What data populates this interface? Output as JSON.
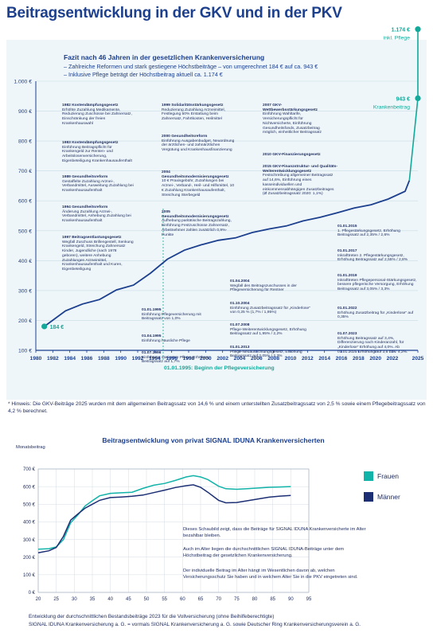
{
  "page": {
    "title": "Beitragsentwicklung in der GKV und in der PKV",
    "footnote": "* Hinweis: Die GKV-Beiträge 2025 wurden mit dem allgemeinen Beitragssatz von 14,6 % und einem unterstellten Zusatzbeitragssatz von 2,5 % sowie einem Pflegebeitragssatz von 4,2 % berechnet.",
    "bottom_line1": "Entwicklung der durchschnittlichen Bestandsbeiträge 2023 für die Vollversicherung (ohne Beihilfeberechtigte)",
    "bottom_line2": "SIGNAL IDUNA Krankenversicherung a. G. = vormals SIGNAL Krankenversicherung a. G. sowie Deutscher Ring Krankenversicherungsverein a. G."
  },
  "fazit": {
    "title": "Fazit nach 46 Jahren in der gesetzlichen Krankenversicherung",
    "line1": "– Zahlreiche Reformen und stark gestiegene Höchstbeiträge – von umgerechnet 184 € auf ca. 943 €",
    "line2": "– Inklusive Pflege beträgt der Höchstbeitrag aktuell ca. 1.174 €"
  },
  "chart_data": [
    {
      "type": "line",
      "title": "",
      "xlabel": "",
      "ylabel": "",
      "ylim": [
        100,
        1000
      ],
      "xlim": [
        1980,
        2025
      ],
      "y_ticks": [
        "100 €",
        "200 €",
        "300 €",
        "400 €",
        "500 €",
        "600 €",
        "700 €",
        "800 €",
        "900 €",
        "1.000 €"
      ],
      "x_ticks": [
        "1980",
        "1982",
        "1984",
        "1986",
        "1988",
        "1990",
        "1992",
        "1994",
        "1996",
        "1998",
        "2000",
        "2002",
        "2004",
        "2006",
        "2008",
        "2010",
        "2012",
        "2014",
        "2016",
        "2018",
        "2020",
        "2022",
        "2025"
      ],
      "series": [
        {
          "name": "",
          "color": "#1c3f8e",
          "points": [
            [
              1981,
              180
            ],
            [
              1983.5,
              232
            ],
            [
              1985.5,
              255
            ],
            [
              1987.5,
              270
            ],
            [
              1989.5,
              302
            ],
            [
              1991.5,
              318
            ],
            [
              1993.5,
              358
            ],
            [
              1995.5,
              405
            ],
            [
              1997.5,
              435
            ],
            [
              1999.5,
              453
            ],
            [
              2001.5,
              468
            ],
            [
              2003.5,
              476
            ],
            [
              2005.5,
              494
            ],
            [
              2007.5,
              506
            ],
            [
              2009.5,
              516
            ],
            [
              2011.5,
              533
            ],
            [
              2013.5,
              545
            ],
            [
              2015.5,
              560
            ],
            [
              2017.5,
              576
            ],
            [
              2019.5,
              587
            ],
            [
              2021.5,
              606
            ],
            [
              2023.5,
              632
            ],
            [
              2024,
              668
            ]
          ]
        },
        {
          "name": "Krankenbeitrag",
          "color": "#12a99a",
          "points": [
            [
              2024,
              668
            ],
            [
              2025,
              943
            ]
          ]
        },
        {
          "name": "inkl. Pflege",
          "color": "#12a99a",
          "points": [
            [
              2025,
              943
            ],
            [
              2025,
              1174
            ]
          ]
        }
      ],
      "start_label": "184 €",
      "end_label_kranken": "943 €",
      "end_label_kranken_caption": "Krankenbeitrag",
      "end_label_pflege": "1.174 €",
      "end_label_pflege_caption": "inkl. Pflege",
      "marker_label": "01.01.1995: Beginn der Pflegeversicherung",
      "marker_x": 1995,
      "colors": {
        "line": "#1c3f8e",
        "accent": "#12a99a",
        "grid": "#c9dde6"
      },
      "annotations": [
        {
          "title": "1982 Kostendämpfungsgesetz",
          "text": "Erhöhte Zuzahlung Medikamente, Reduzierung Zuschüsse bei Zahnersatz, Einschränkung der freien Krankenhauswahl"
        },
        {
          "title": "1983 Kostendämpfungsgesetz",
          "text": "Einführung Beitragspflicht für Krankengeld zur Renten- und Arbeitslosenversicherung, Eigenbeteiligung Krankenhausaufenthalt"
        },
        {
          "title": "1989 Gesundheitsreform",
          "text": "Gestaffelte Zuzahlung Arznei-, Verbandmittel, Ausweitung Zuzahlung bei Krankenhausaufenthalt"
        },
        {
          "title": "1994 Gesundheitsreform",
          "text": "Änderung Zuzahlung Arznei-, Verbandmittel, Anhebung Zuzahlung bei Krankenhausaufenthalt"
        },
        {
          "title": "1997 Beitragsentlastungsgesetz",
          "text": "Wegfall Zuschuss Brillengestell, Senkung Krankengeld, Streichung Zahnersatz Kinder, Jugendliche (nach 1978 geboren), weitere Anhebung Zuzahlungen Arzneimittel, Krankenhausaufenthalt und Kuren, Eigenbeteiligung"
        },
        {
          "title": "1999 Solidaritätsstärkungsgesetz",
          "text": "Reduzierung Zuzahlung Arzneimittel, Festlegung 50% Erstattung beim Zahnersatz, Fahrtkosten, Heilmittel"
        },
        {
          "title": "2000 Gesundheitsreform",
          "text": "Einführung Ausgabenbudget, Neuordnung der ärztlichen- und zahnärztlichen Vergütung und Krankenhausfinanzierung"
        },
        {
          "title": "2004 Gesundheitsmodernisierungsgesetz",
          "text": "10 € Praxisgebühr, Zuzahlungen bei Arznei-, Verband-, Heil- und Hilfsmittel, 10 € Zuzahlung Krankenhausaufenthalt, Streichung Sterbegeld"
        },
        {
          "title": "2005 Gesundheitsmodernisierungsgesetz",
          "text": "Aufhebung paritätische Beitragszahlung, Einführung Festzuschüsse Zahnersatz, Arbeitnehmer zahlen zusätzlich 0,9%-Punkte"
        },
        {
          "title": "2007 GKV-Wettbewerbsstärkungsgesetz",
          "text": "Einführung Wahltarife, Versicherungspflicht für Nichtversicherte, Einführung Gesundheitsfonds, Zusatzbeitrag möglich, einheitlicher Beitragssatz"
        },
        {
          "title": "2010 GKV-Finanzierungsgesetz",
          "text": ""
        },
        {
          "title": "2015 GKV-Finanzstruktur- und Qualitäts-Weiterentwicklungsgesetz",
          "text": "Festschreibung allgemeiner Beitragssatz auf 14,6%, Einführung eines kasseindividuellen und einkommensabhängigen Zusatzbeitrages (Ø Zusatzbeitragssatz 2020: 1,1%)"
        },
        {
          "title": "01.01.1995",
          "text": "Einführung Pflegeversicherung mit Beitragssatz von 1,0%"
        },
        {
          "title": "01.04.1995",
          "text": "Einführung häusliche Pflege"
        },
        {
          "title": "01.07.1996",
          "text": "Einführung stationäre Pflege, Erhöhung Beitragssatz auf 1,7%"
        },
        {
          "title": "01.04.2004",
          "text": "Wegfall des Beitragszuschusses in der Pflegeversicherung für Rentner"
        },
        {
          "title": "01.10.2004",
          "text": "Einführung Zusatzbeitragssatz für „Kinderlose“ von 0,25 % (1,7% / 1,95%)"
        },
        {
          "title": "01.07.2008",
          "text": "Pflege-Weiterentwicklungsgesetz, Erhöhung Beitragssatz auf 1,95% / 2,2%"
        },
        {
          "title": "01.01.2013",
          "text": "Pflege-Neuausrichtungsgesetz, Erhöhung Beitragssatz auf 2,05% / 2,3%"
        },
        {
          "title": "01.01.2015",
          "text": "1. Pflegestärkungsgesetz, Erhöhung Beitragssatz auf 2,35% / 2,6%"
        },
        {
          "title": "01.01.2017",
          "text": "Inkrafttreten 2. Pflegestärkungsgesetz, Erhöhung Beitragssatz auf 2,55% / 2,8%"
        },
        {
          "title": "01.01.2019",
          "text": "Inkrafttreten Pflegepersonal-Stärkungsgesetz, bessere pflegerische Versorgung, Erhöhung Beitragssatz auf 3,05% / 3,3%"
        },
        {
          "title": "01.01.2022",
          "text": "Erhöhung Zusatzbeitrag für „Kinderlose“ auf 0,35%"
        },
        {
          "title": "01.07.2023",
          "text": "Erhöhung Beitragssatz auf 3,4%, Differenzierung nach Kinderanzahl, für „Kinderlose“ Erhöhung auf 4,0%. Ab 01.01.2025 Erhöhung auf 3,6 bzw. 4,2%."
        }
      ]
    },
    {
      "type": "line",
      "title": "Beitragsentwicklung von privat SIGNAL IDUNA Krankenversicherten",
      "ylabel": "Monatsbeitrag",
      "xlabel": "",
      "ylim": [
        0,
        700
      ],
      "xlim": [
        20,
        95
      ],
      "y_ticks": [
        "0 €",
        "100 €",
        "200 €",
        "300 €",
        "400 €",
        "500 €",
        "600 €",
        "700 €"
      ],
      "x_ticks": [
        "20",
        "25",
        "30",
        "35",
        "40",
        "45",
        "50",
        "55",
        "60",
        "65",
        "70",
        "75",
        "80",
        "85",
        "90",
        "95"
      ],
      "legend": "right",
      "series": [
        {
          "name": "Frauen",
          "color": "#12b3a8",
          "points": [
            [
              20,
              245
            ],
            [
              23,
              248
            ],
            [
              25,
              258
            ],
            [
              27,
              300
            ],
            [
              29,
              395
            ],
            [
              31,
              440
            ],
            [
              33,
              490
            ],
            [
              35,
              520
            ],
            [
              37,
              548
            ],
            [
              40,
              562
            ],
            [
              43,
              565
            ],
            [
              46,
              568
            ],
            [
              49,
              590
            ],
            [
              52,
              608
            ],
            [
              55,
              618
            ],
            [
              58,
              635
            ],
            [
              61,
              655
            ],
            [
              63,
              662
            ],
            [
              65,
              655
            ],
            [
              67,
              640
            ],
            [
              70,
              602
            ],
            [
              72,
              588
            ],
            [
              75,
              585
            ],
            [
              78,
              588
            ],
            [
              81,
              592
            ],
            [
              84,
              596
            ],
            [
              87,
              598
            ],
            [
              90,
              600
            ]
          ]
        },
        {
          "name": "Männer",
          "color": "#1c2f74",
          "points": [
            [
              20,
              225
            ],
            [
              23,
              236
            ],
            [
              25,
              255
            ],
            [
              27,
              318
            ],
            [
              29,
              410
            ],
            [
              31,
              445
            ],
            [
              33,
              478
            ],
            [
              35,
              500
            ],
            [
              37,
              522
            ],
            [
              40,
              538
            ],
            [
              43,
              541
            ],
            [
              46,
              545
            ],
            [
              49,
              552
            ],
            [
              52,
              566
            ],
            [
              55,
              580
            ],
            [
              58,
              595
            ],
            [
              61,
              605
            ],
            [
              63,
              610
            ],
            [
              65,
              596
            ],
            [
              67,
              568
            ],
            [
              70,
              522
            ],
            [
              72,
              508
            ],
            [
              75,
              510
            ],
            [
              78,
              520
            ],
            [
              81,
              530
            ],
            [
              84,
              540
            ],
            [
              87,
              546
            ],
            [
              90,
              550
            ]
          ]
        }
      ],
      "notes": [
        "Dieses Schaubild zeigt, dass die Beiträge für SIGNAL IDUNA Krankenversicherte im Alter bezahlbar bleiben.",
        "Auch im Alter liegen die durchschnittlichen SIGNAL IDUNA-Beiträge unter dem Höchstbeitrag der gesetzlichen Krankenversicherung.",
        "Der individuelle Beitrag im Alter hängt im Wesentlichen davon ab, welchen Versicherungsschutz Sie haben und in welchem Alter Sie in die PKV eingetreten sind."
      ]
    }
  ]
}
